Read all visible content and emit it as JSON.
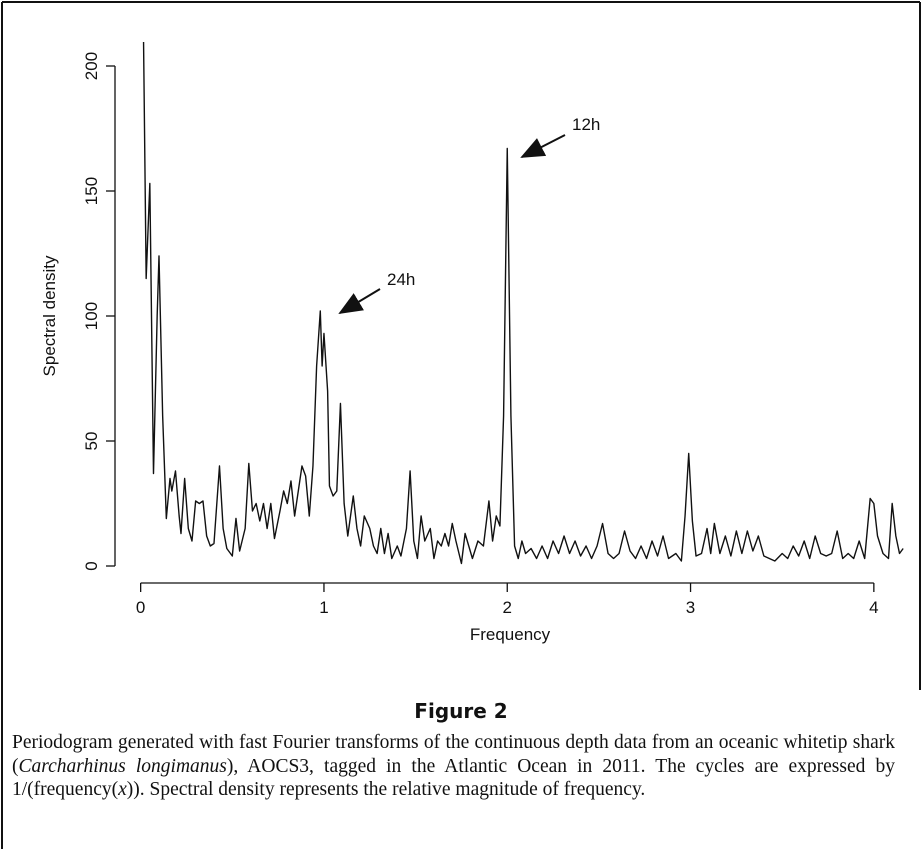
{
  "chart_data": {
    "type": "line",
    "xlabel": "Frequency",
    "ylabel": "Spectral density",
    "color": "#111111",
    "x": [
      0.015,
      0.03,
      0.05,
      0.07,
      0.09,
      0.1,
      0.12,
      0.14,
      0.16,
      0.17,
      0.19,
      0.21,
      0.22,
      0.24,
      0.26,
      0.28,
      0.3,
      0.32,
      0.34,
      0.36,
      0.38,
      0.4,
      0.43,
      0.45,
      0.47,
      0.5,
      0.52,
      0.54,
      0.57,
      0.59,
      0.61,
      0.63,
      0.65,
      0.67,
      0.69,
      0.71,
      0.73,
      0.76,
      0.78,
      0.8,
      0.82,
      0.84,
      0.86,
      0.88,
      0.9,
      0.92,
      0.94,
      0.96,
      0.98,
      0.99,
      1.0,
      1.02,
      1.03,
      1.05,
      1.07,
      1.09,
      1.11,
      1.13,
      1.16,
      1.18,
      1.2,
      1.22,
      1.25,
      1.27,
      1.29,
      1.31,
      1.33,
      1.35,
      1.37,
      1.4,
      1.42,
      1.45,
      1.47,
      1.49,
      1.51,
      1.53,
      1.55,
      1.58,
      1.6,
      1.62,
      1.64,
      1.66,
      1.68,
      1.7,
      1.72,
      1.75,
      1.77,
      1.79,
      1.81,
      1.84,
      1.87,
      1.9,
      1.92,
      1.94,
      1.96,
      1.98,
      2.0,
      2.02,
      2.04,
      2.06,
      2.08,
      2.1,
      2.13,
      2.16,
      2.19,
      2.22,
      2.25,
      2.28,
      2.31,
      2.34,
      2.37,
      2.4,
      2.43,
      2.46,
      2.49,
      2.52,
      2.55,
      2.58,
      2.61,
      2.64,
      2.67,
      2.7,
      2.73,
      2.76,
      2.79,
      2.82,
      2.85,
      2.88,
      2.92,
      2.95,
      2.97,
      2.99,
      3.01,
      3.03,
      3.06,
      3.09,
      3.11,
      3.13,
      3.16,
      3.19,
      3.22,
      3.25,
      3.28,
      3.31,
      3.34,
      3.37,
      3.4,
      3.43,
      3.46,
      3.5,
      3.53,
      3.56,
      3.59,
      3.62,
      3.65,
      3.68,
      3.71,
      3.74,
      3.77,
      3.8,
      3.83,
      3.86,
      3.89,
      3.92,
      3.95,
      3.98,
      4.0,
      4.02,
      4.05,
      4.08,
      4.1,
      4.12,
      4.14,
      4.16
    ],
    "values": [
      215,
      115,
      153,
      37,
      100,
      124,
      60,
      19,
      35,
      30,
      38,
      20,
      13,
      35,
      15,
      10,
      26,
      25,
      26,
      12,
      8,
      9,
      40,
      15,
      7,
      4,
      19,
      6,
      15,
      41,
      22,
      25,
      18,
      25,
      15,
      25,
      11,
      22,
      30,
      25,
      34,
      20,
      30,
      40,
      36,
      20,
      40,
      80,
      102,
      80,
      93,
      70,
      32,
      28,
      30,
      65,
      25,
      12,
      28,
      15,
      8,
      20,
      15,
      8,
      5,
      15,
      5,
      13,
      3,
      8,
      4,
      15,
      38,
      10,
      3,
      20,
      10,
      15,
      3,
      10,
      8,
      13,
      8,
      17,
      10,
      1,
      13,
      8,
      3,
      10,
      8,
      26,
      10,
      20,
      16,
      60,
      167,
      60,
      8,
      3,
      10,
      5,
      7,
      3,
      8,
      3,
      10,
      5,
      12,
      5,
      10,
      4,
      8,
      3,
      8,
      17,
      5,
      3,
      5,
      14,
      6,
      3,
      8,
      3,
      10,
      4,
      12,
      3,
      5,
      2,
      20,
      45,
      18,
      4,
      5,
      15,
      5,
      17,
      5,
      12,
      4,
      14,
      5,
      14,
      6,
      12,
      4,
      3,
      2,
      5,
      3,
      8,
      4,
      10,
      3,
      12,
      5,
      4,
      5,
      14,
      3,
      5,
      3,
      10,
      3,
      27,
      25,
      12,
      5,
      3,
      25,
      12,
      5,
      7
    ],
    "xlim": [
      -0.14,
      4.17
    ],
    "ylim": [
      -6.8,
      209.6
    ],
    "xticks": [
      0,
      1,
      2,
      3,
      4
    ],
    "yticks": [
      0,
      50,
      100,
      150,
      200
    ],
    "annotations": [
      "24h",
      "12h"
    ]
  },
  "figure": {
    "label": "Figure 2",
    "caption": [
      "Periodogram generated with fast Fourier transforms of the continuous depth data from an oceanic whitetip shark (",
      "Carcharhinus longimanus",
      "), AOCS3, tagged in the Atlantic Ocean in 2011. The cycles are expressed by 1/(frequency(",
      "x",
      ")). Spectral density represents the relative magnitude of frequency."
    ]
  }
}
